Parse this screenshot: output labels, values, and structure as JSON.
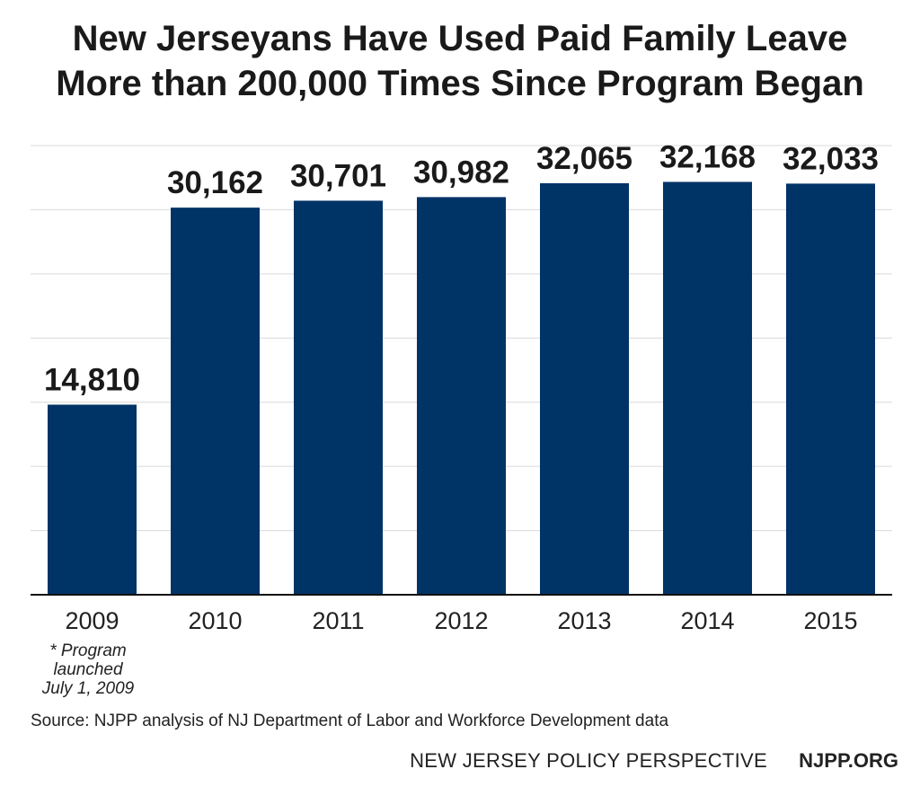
{
  "chart_data": {
    "type": "bar",
    "title": [
      "New Jerseyans Have Used Paid Family Leave",
      "More than 200,000 Times Since Program Began"
    ],
    "categories": [
      "2009",
      "2010",
      "2011",
      "2012",
      "2013",
      "2014",
      "2015"
    ],
    "values": [
      14810,
      30162,
      30701,
      30982,
      32065,
      32168,
      32033
    ],
    "value_labels": [
      "14,810",
      "30,162",
      "30,701",
      "30,982",
      "32,065",
      "32,168",
      "32,033"
    ],
    "ylim": [
      0,
      35000
    ],
    "grid": true,
    "bar_color": "#003366",
    "footnote": [
      "* Program",
      "launched",
      "July 1, 2009"
    ],
    "source": "Source: NJPP analysis of NJ Department of Labor and Workforce Development data"
  },
  "branding": {
    "name": "NEW JERSEY POLICY PERSPECTIVE",
    "url": "NJPP.ORG"
  }
}
